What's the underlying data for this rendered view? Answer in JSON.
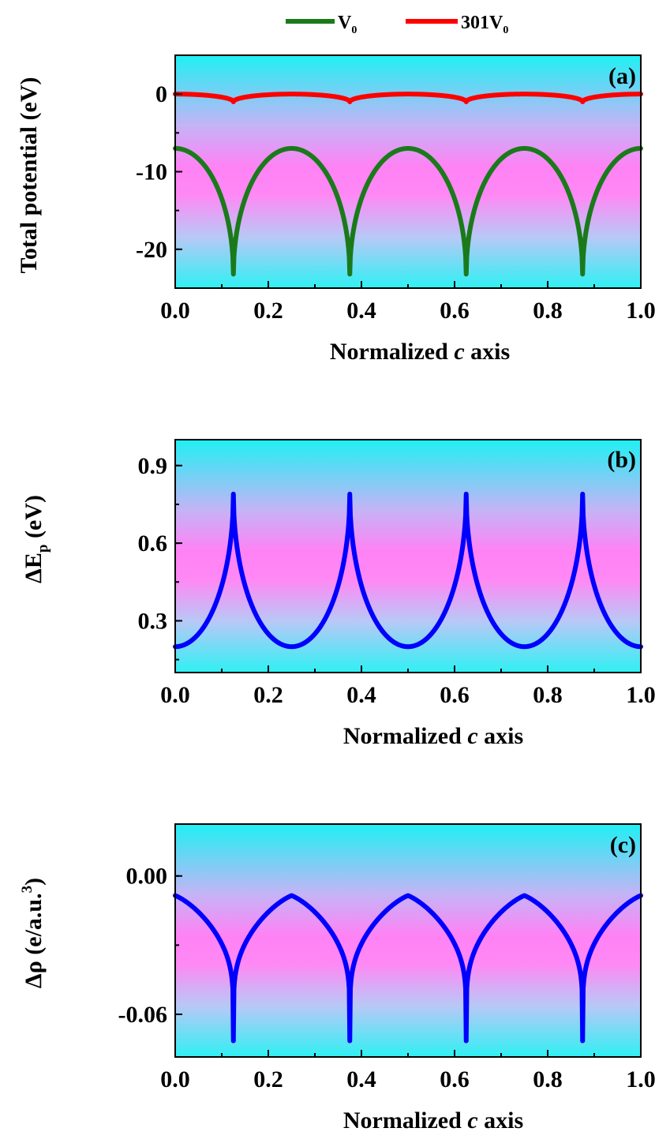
{
  "legend": {
    "items": [
      {
        "label": "V",
        "sub": "0",
        "color": "#1a7a1a"
      },
      {
        "label": "301V",
        "sub": "0",
        "color": "#ff0000"
      }
    ]
  },
  "chart_data": [
    {
      "type": "line",
      "panel_label": "(a)",
      "ylabel": "Total potential (eV)",
      "xlabel_pre": "Normalized ",
      "xlabel_italic": "c",
      "xlabel_post": " axis",
      "xlim": [
        0,
        1
      ],
      "ylim": [
        -25,
        5
      ],
      "xticks": [
        0.0,
        0.2,
        0.4,
        0.6,
        0.8,
        1.0
      ],
      "xtick_labels": [
        "0.0",
        "0.2",
        "0.4",
        "0.6",
        "0.8",
        "1.0"
      ],
      "yticks": [
        0,
        -10,
        -20
      ],
      "ytick_labels": [
        "0",
        "-10",
        "-20"
      ],
      "series": [
        {
          "name": "V0",
          "color": "#1a7a1a",
          "shape": "cusp_down",
          "base": -7.0,
          "extreme": -23.2,
          "minima_x": [
            0.125,
            0.375,
            0.625,
            0.875
          ]
        },
        {
          "name": "301V0",
          "color": "#ff0000",
          "shape": "cusp_down",
          "base": 0.0,
          "extreme": -1.0,
          "minima_x": [
            0.125,
            0.375,
            0.625,
            0.875
          ]
        }
      ]
    },
    {
      "type": "line",
      "panel_label": "(b)",
      "ylabel_pre": "ΔE",
      "ylabel_sub": "p",
      "ylabel_post": " (eV)",
      "xlabel_pre": "Normalized ",
      "xlabel_italic": "c",
      "xlabel_post": " axis",
      "xlim": [
        0,
        1
      ],
      "ylim": [
        0.1,
        1.0
      ],
      "xticks": [
        0.0,
        0.2,
        0.4,
        0.6,
        0.8,
        1.0
      ],
      "xtick_labels": [
        "0.0",
        "0.2",
        "0.4",
        "0.6",
        "0.8",
        "1.0"
      ],
      "yticks": [
        0.9,
        0.6,
        0.3
      ],
      "ytick_labels": [
        "0.9",
        "0.6",
        "0.3"
      ],
      "series": [
        {
          "name": "ΔEp",
          "color": "#0000ff",
          "shape": "cusp_up",
          "base": 0.2,
          "extreme": 0.79,
          "minima_x": [
            0.125,
            0.375,
            0.625,
            0.875
          ]
        }
      ]
    },
    {
      "type": "line",
      "panel_label": "(c)",
      "ylabel_pre": "Δρ (e/a.u.",
      "ylabel_sup": "3",
      "ylabel_post": ")",
      "xlabel_pre": "Normalized ",
      "xlabel_italic": "c",
      "xlabel_post": " axis",
      "xlim": [
        0,
        1
      ],
      "ylim": [
        -0.0785,
        0.0225
      ],
      "xticks": [
        0.0,
        0.2,
        0.4,
        0.6,
        0.8,
        1.0
      ],
      "xtick_labels": [
        "0.0",
        "0.2",
        "0.4",
        "0.6",
        "0.8",
        "1.0"
      ],
      "yticks": [
        0.0,
        -0.06
      ],
      "ytick_labels": [
        "0.00",
        "-0.06"
      ],
      "series": [
        {
          "name": "Δρ",
          "color": "#0000ff",
          "shape": "sharp_dip",
          "base": -0.0085,
          "extreme": -0.0715,
          "minima_x": [
            0.125,
            0.375,
            0.625,
            0.875
          ]
        }
      ]
    }
  ]
}
